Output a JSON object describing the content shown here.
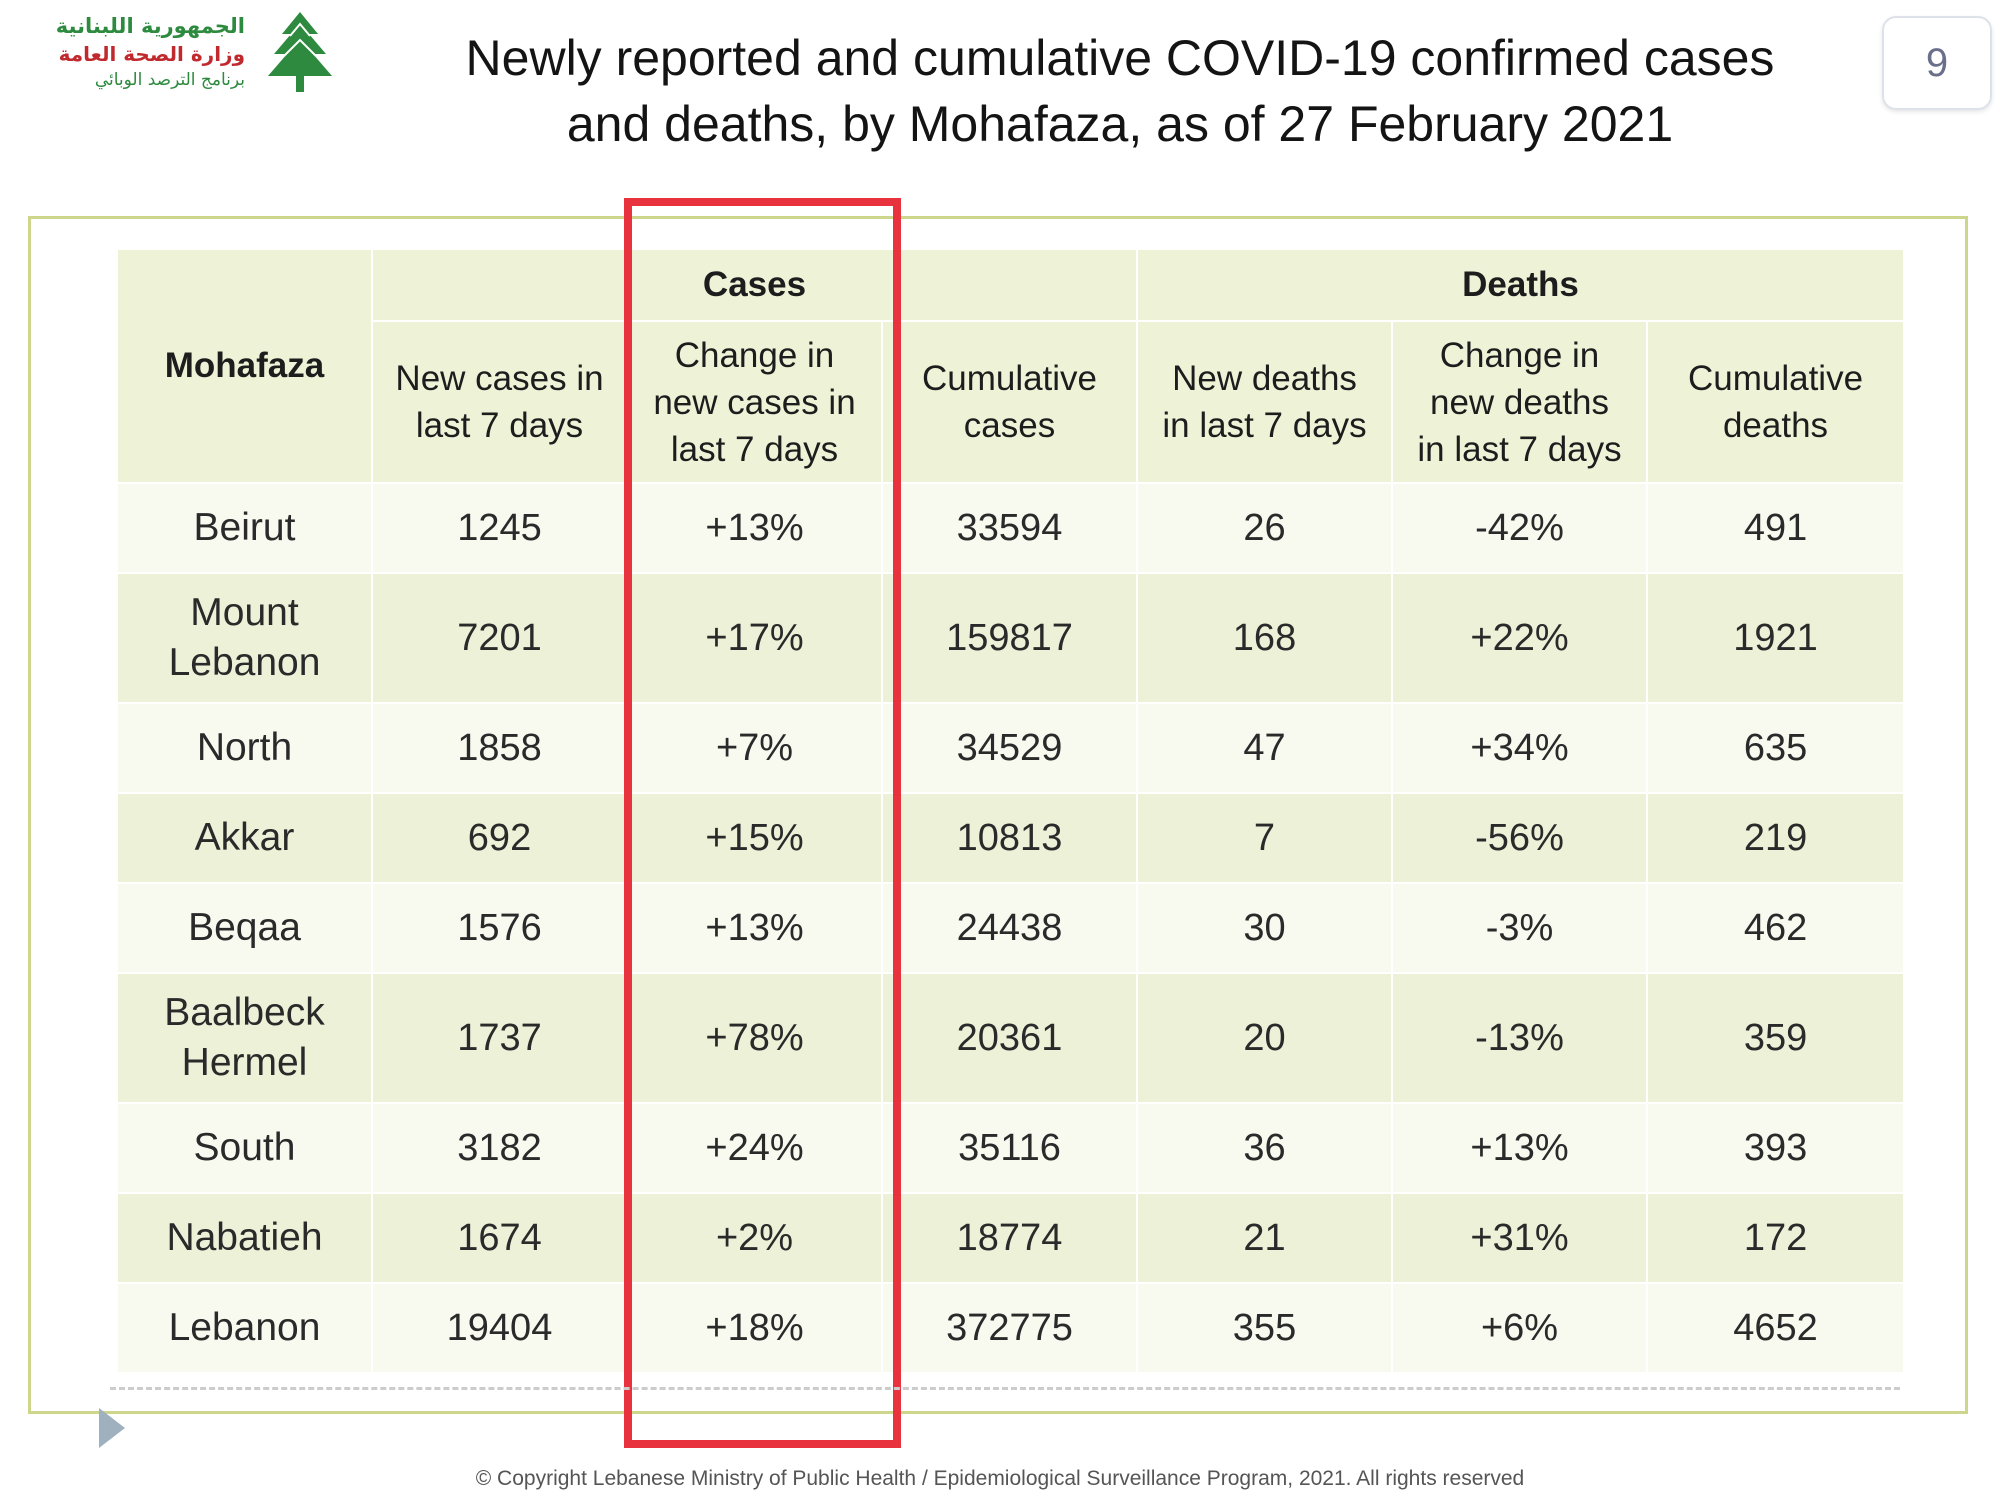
{
  "logo": {
    "line1": "الجمهورية اللبنانية",
    "line2": "وزارة الصحة العامة",
    "line3": "برنامج الترصد الوبائي",
    "emblem": "cedar-tree-icon"
  },
  "title": {
    "line1": "Newly reported and cumulative COVID-19 confirmed cases",
    "line2": "and deaths, by Mohafaza, as of 27 February 2021"
  },
  "page_number": "9",
  "table": {
    "header_top": {
      "mohafaza": "Mohafaza",
      "cases": "Cases",
      "deaths": "Deaths"
    },
    "columns": {
      "new_cases": [
        "New cases in",
        "last 7 days"
      ],
      "change_cases": [
        "Change in",
        "new cases in",
        "last 7 days"
      ],
      "cumulative_cases": [
        "Cumulative",
        "cases"
      ],
      "new_deaths": [
        "New deaths",
        "in last 7 days"
      ],
      "change_deaths": [
        "Change in",
        "new deaths",
        "in last 7 days"
      ],
      "cumulative_deaths": [
        "Cumulative",
        "deaths"
      ]
    },
    "rows": [
      {
        "name": [
          "Beirut"
        ],
        "new_cases": "1245",
        "change_cases": "+13%",
        "cumulative_cases": "33594",
        "new_deaths": "26",
        "change_deaths": "-42%",
        "cumulative_deaths": "491"
      },
      {
        "name": [
          "Mount",
          "Lebanon"
        ],
        "new_cases": "7201",
        "change_cases": "+17%",
        "cumulative_cases": "159817",
        "new_deaths": "168",
        "change_deaths": "+22%",
        "cumulative_deaths": "1921"
      },
      {
        "name": [
          "North"
        ],
        "new_cases": "1858",
        "change_cases": "+7%",
        "cumulative_cases": "34529",
        "new_deaths": "47",
        "change_deaths": "+34%",
        "cumulative_deaths": "635"
      },
      {
        "name": [
          "Akkar"
        ],
        "new_cases": "692",
        "change_cases": "+15%",
        "cumulative_cases": "10813",
        "new_deaths": "7",
        "change_deaths": "-56%",
        "cumulative_deaths": "219"
      },
      {
        "name": [
          "Beqaa"
        ],
        "new_cases": "1576",
        "change_cases": "+13%",
        "cumulative_cases": "24438",
        "new_deaths": "30",
        "change_deaths": "-3%",
        "cumulative_deaths": "462"
      },
      {
        "name": [
          "Baalbeck",
          "Hermel"
        ],
        "new_cases": "1737",
        "change_cases": "+78%",
        "cumulative_cases": "20361",
        "new_deaths": "20",
        "change_deaths": "-13%",
        "cumulative_deaths": "359"
      },
      {
        "name": [
          "South"
        ],
        "new_cases": "3182",
        "change_cases": "+24%",
        "cumulative_cases": "35116",
        "new_deaths": "36",
        "change_deaths": "+13%",
        "cumulative_deaths": "393"
      },
      {
        "name": [
          "Nabatieh"
        ],
        "new_cases": "1674",
        "change_cases": "+2%",
        "cumulative_cases": "18774",
        "new_deaths": "21",
        "change_deaths": "+31%",
        "cumulative_deaths": "172"
      },
      {
        "name": [
          "Lebanon"
        ],
        "new_cases": "19404",
        "change_cases": "+18%",
        "cumulative_cases": "372775",
        "new_deaths": "355",
        "change_deaths": "+6%",
        "cumulative_deaths": "4652"
      }
    ]
  },
  "colors": {
    "positive_change": "#c9343c",
    "header_bg": "#eef3d7",
    "highlight_box": "#e8333e",
    "frame_border": "#cdd68a"
  },
  "footer": "© Copyright Lebanese Ministry of Public Health / Epidemiological Surveillance Program, 2021. All rights reserved"
}
